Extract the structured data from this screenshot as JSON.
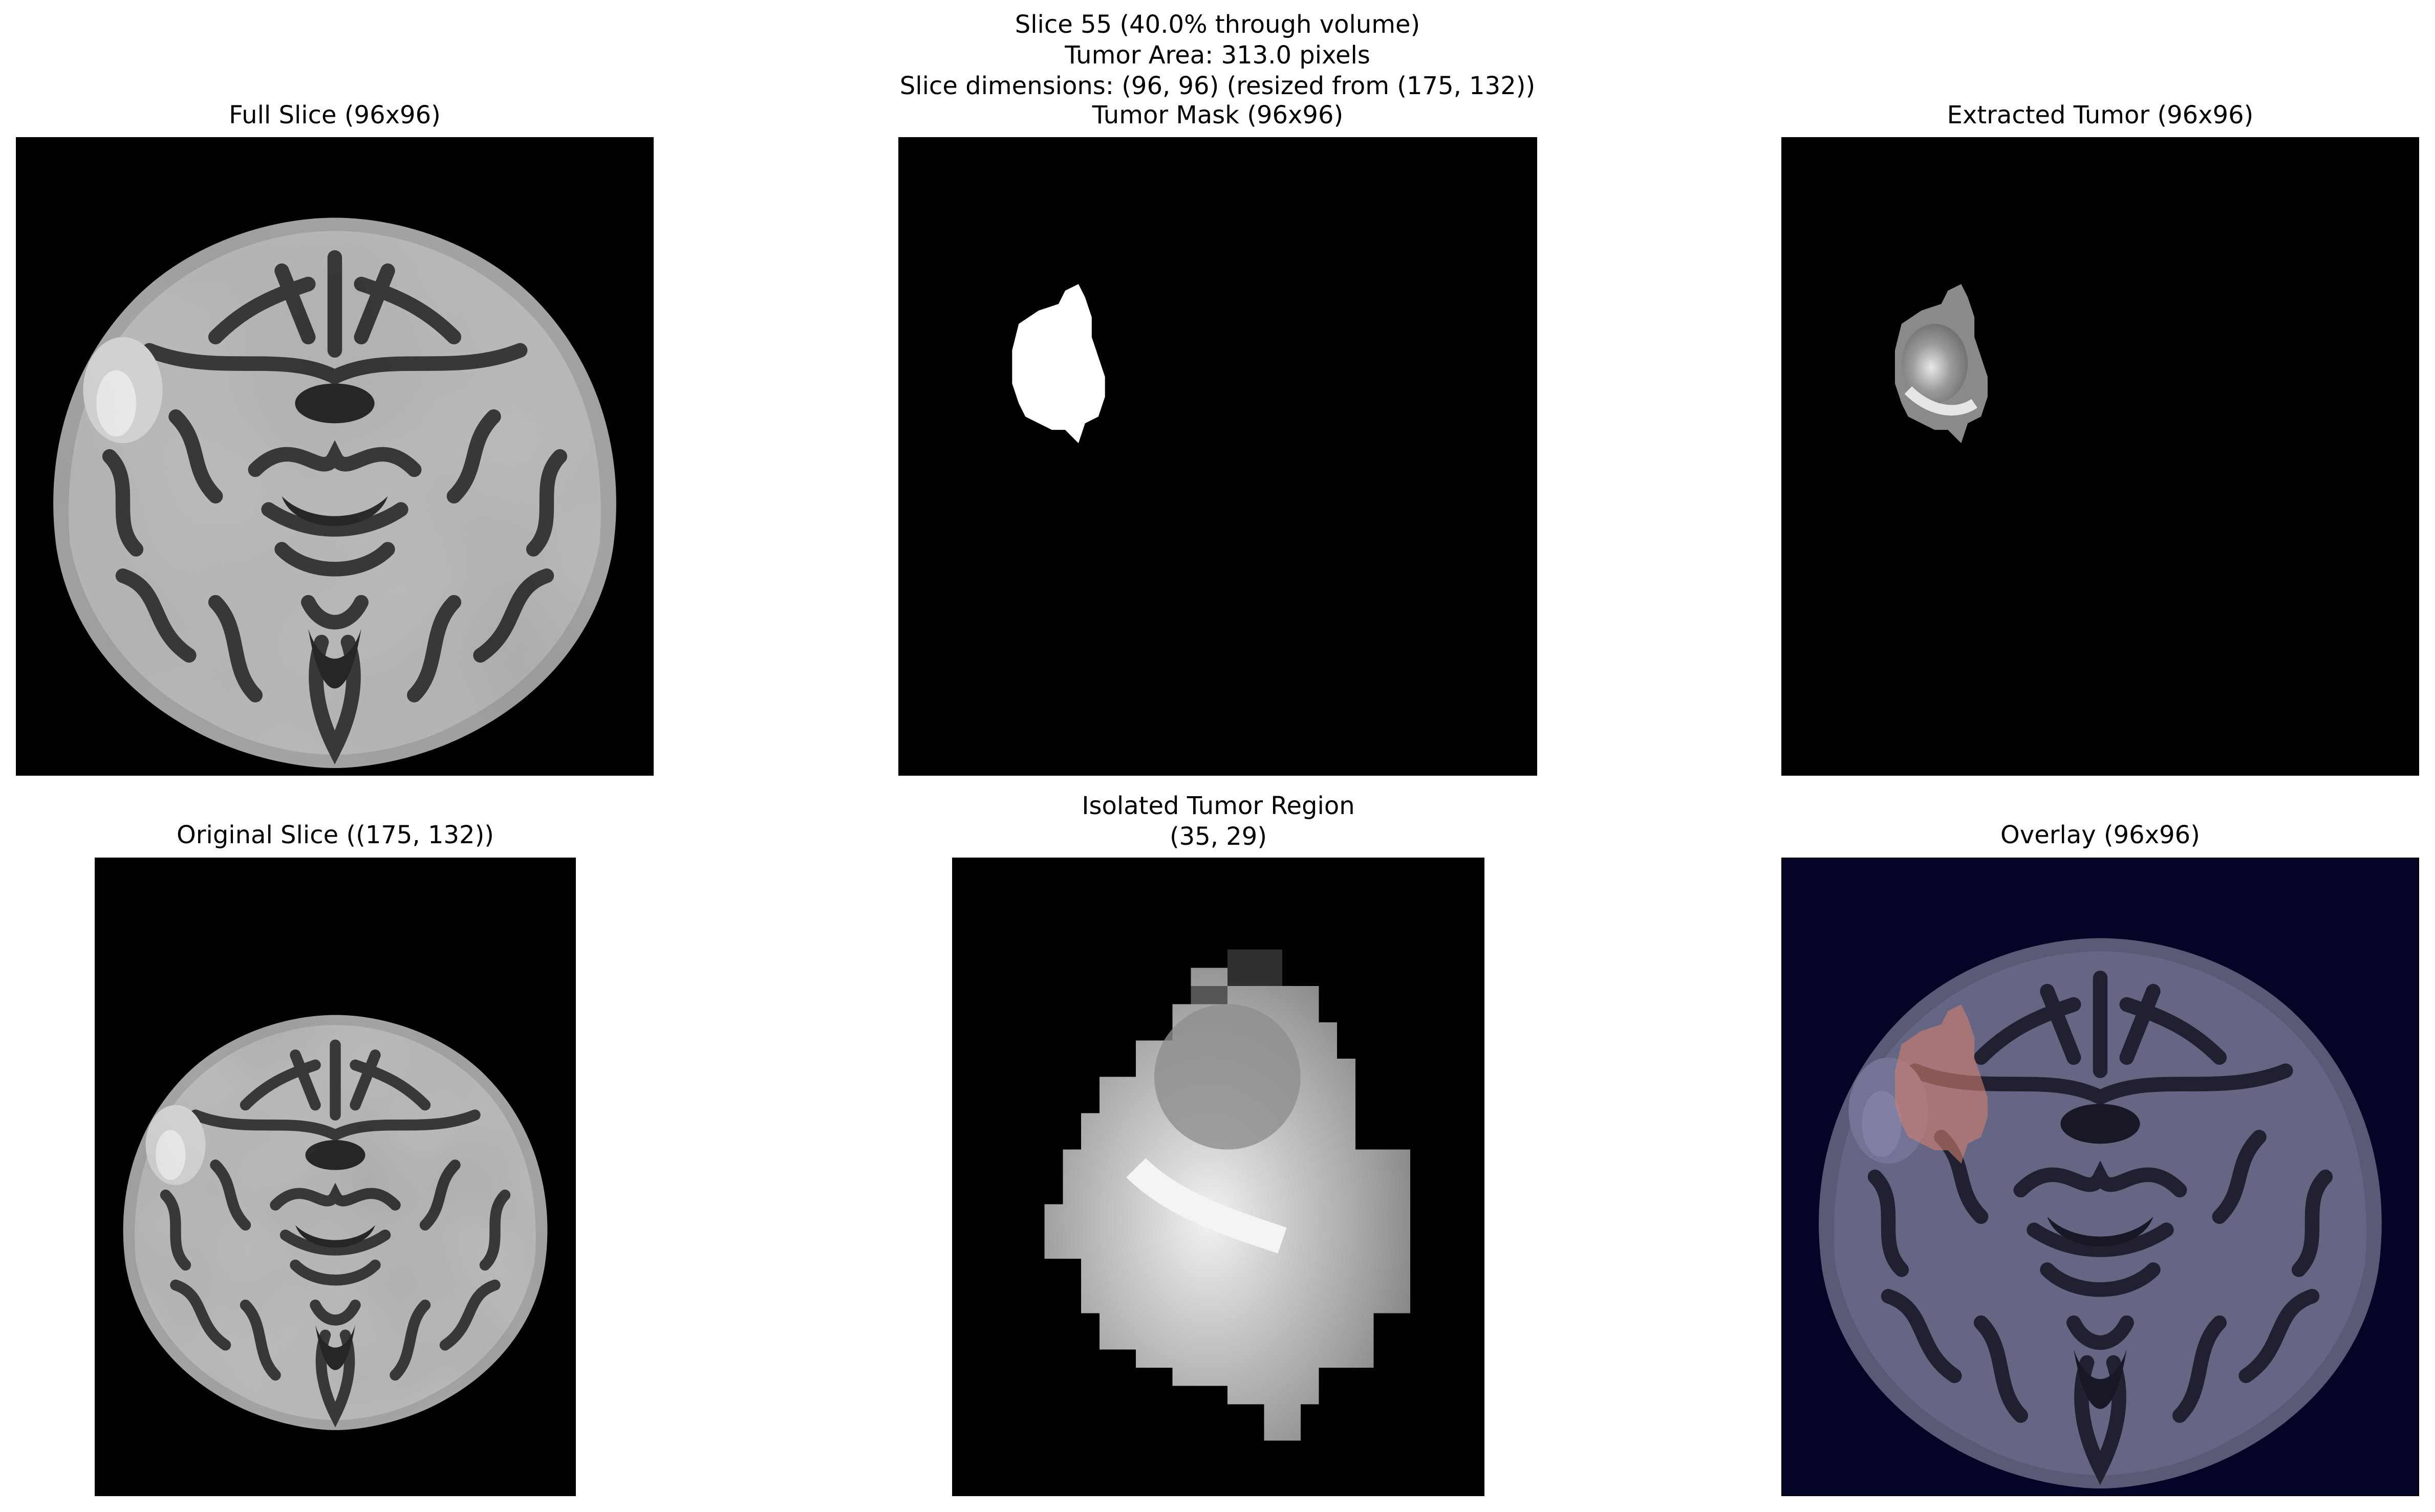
{
  "figure": {
    "suptitle": [
      "Slice 55 (40.0% through volume)",
      "Tumor Area: 313.0 pixels",
      "Slice dimensions: (96, 96) (resized from (175, 132))"
    ],
    "panels": [
      {
        "id": "full-slice",
        "title": "Full Slice (96x96)"
      },
      {
        "id": "tumor-mask",
        "title": "Tumor Mask (96x96)"
      },
      {
        "id": "extracted-tumor",
        "title": "Extracted Tumor (96x96)"
      },
      {
        "id": "original-slice",
        "title": "Original Slice ((175, 132))"
      },
      {
        "id": "isolated-tumor",
        "title_line1": "Isolated Tumor Region",
        "title_line2": "(35, 29)"
      },
      {
        "id": "overlay",
        "title": "Overlay (96x96)"
      }
    ]
  },
  "colors": {
    "background": "#000000",
    "mask": "#ffffff",
    "overlay_tint": "#0a0a3a",
    "overlay_tumor": "#d08070"
  }
}
